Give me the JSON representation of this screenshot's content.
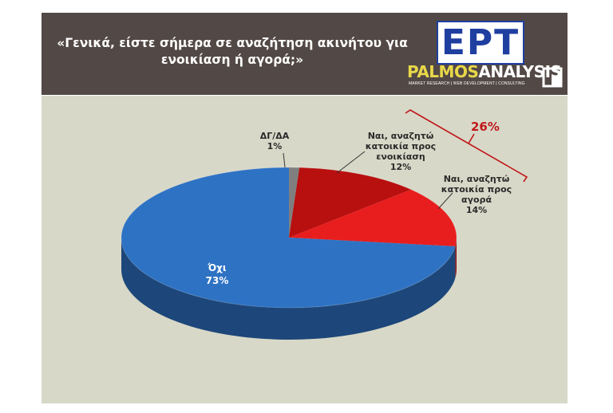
{
  "header": {
    "title_line1": "«Γενικά, είστε σήμερα σε αναζήτηση ακινήτου για",
    "title_line2": "ενοικίαση ή αγορά;»"
  },
  "logo": {
    "ert": "EPT",
    "palmos_part1": "PALMOS",
    "palmos_part2": "ANALYSIS",
    "tagline": "MARKET RESEARCH | WEB DEVELOPMENT | CONSULTING"
  },
  "chart_data": {
    "type": "pie",
    "slices": [
      {
        "label": "ΔΓ/ΔΑ",
        "value": 1,
        "pct_label": "1%",
        "color": "#7f7f7f"
      },
      {
        "label": "Ναι, αναζητώ κατοικία προς ενοικίαση",
        "value": 12,
        "pct_label": "12%",
        "color": "#b80f0f"
      },
      {
        "label": "Ναι, αναζητώ κατοικία προς αγορά",
        "value": 14,
        "pct_label": "14%",
        "color": "#e81e1e"
      },
      {
        "label": "Όχι",
        "value": 73,
        "pct_label": "73%",
        "color": "#2e72c4"
      }
    ],
    "bracket_label": "26%",
    "labels": {
      "dk_line1": "ΔΓ/ΔΑ",
      "dk_pct": "1%",
      "rent_line1": "Ναι, αναζητώ",
      "rent_line2": "κατοικία προς",
      "rent_line3": "ενοικίαση",
      "rent_pct": "12%",
      "buy_line1": "Ναι, αναζητώ",
      "buy_line2": "κατοικία προς",
      "buy_line3": "αγορά",
      "buy_pct": "14%",
      "no_line1": "Όχι",
      "no_pct": "73%"
    }
  }
}
